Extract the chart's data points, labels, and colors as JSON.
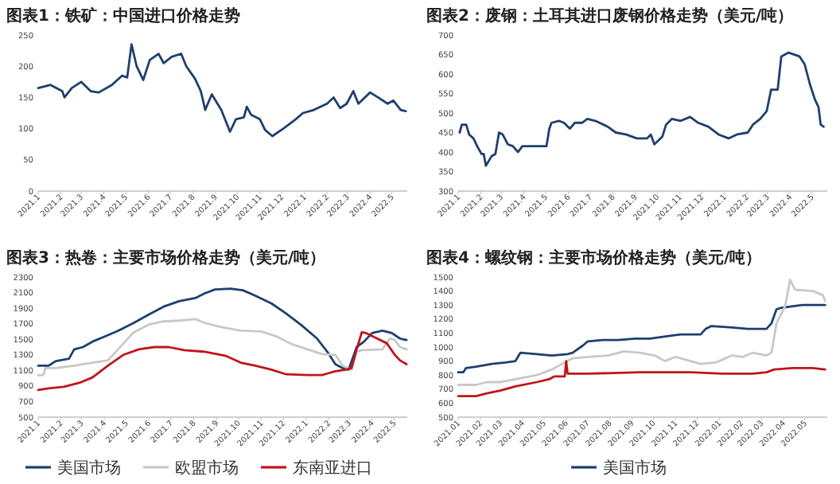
{
  "chart_data": [
    {
      "type": "line",
      "title": "图表1：铁矿：中国进口价格走势",
      "xlim": [
        "2021-01-01",
        "2022-05-22"
      ],
      "ylim": [
        0,
        250
      ],
      "yticks": [
        0,
        50,
        100,
        150,
        200,
        250
      ],
      "xticks": [
        {
          "value": "2021-01",
          "label": "2021.1"
        },
        {
          "value": "2021-02",
          "label": "2021.2"
        },
        {
          "value": "2021-03",
          "label": "2021.3"
        },
        {
          "value": "2021-04",
          "label": "2021.4"
        },
        {
          "value": "2021-05",
          "label": "2021.5"
        },
        {
          "value": "2021-06",
          "label": "2021.6"
        },
        {
          "value": "2021-07",
          "label": "2021.7"
        },
        {
          "value": "2021-08",
          "label": "2021.8"
        },
        {
          "value": "2021-09",
          "label": "2021.9"
        },
        {
          "value": "2021-10",
          "label": "2021.10"
        },
        {
          "value": "2021-11",
          "label": "2021.11"
        },
        {
          "value": "2021-12",
          "label": "2021.12"
        },
        {
          "value": "2022-01",
          "label": "2022.1"
        },
        {
          "value": "2022-02",
          "label": "2022.2"
        },
        {
          "value": "2022-03",
          "label": "2022.3"
        },
        {
          "value": "2022-04",
          "label": "2022.4"
        },
        {
          "value": "2022-05",
          "label": "2022.5"
        }
      ],
      "series": [
        {
          "color": "#1f3f6e",
          "x": [
            "2021-01-01",
            "2021-01-18",
            "2021-02-03",
            "2021-02-06",
            "2021-02-16",
            "2021-03-01",
            "2021-03-07",
            "2021-03-14",
            "2021-03-25",
            "2021-04-12",
            "2021-04-26",
            "2021-05-03",
            "2021-05-09",
            "2021-05-16",
            "2021-05-25",
            "2021-06-03",
            "2021-06-15",
            "2021-06-22",
            "2021-07-03",
            "2021-07-16",
            "2021-07-23",
            "2021-08-04",
            "2021-08-12",
            "2021-08-18",
            "2021-08-27",
            "2021-09-09",
            "2021-09-21",
            "2021-09-29",
            "2021-10-10",
            "2021-10-14",
            "2021-10-20",
            "2021-11-01",
            "2021-11-08",
            "2021-11-18",
            "2021-12-03",
            "2021-12-20",
            "2021-12-30",
            "2022-01-14",
            "2022-02-01",
            "2022-02-10",
            "2022-02-19",
            "2022-02-28",
            "2022-03-09",
            "2022-03-16",
            "2022-04-01",
            "2022-04-12",
            "2022-04-25",
            "2022-05-03",
            "2022-05-13",
            "2022-05-20"
          ],
          "values": [
            165,
            170,
            160,
            150,
            165,
            175,
            168,
            160,
            158,
            170,
            185,
            182,
            235,
            200,
            178,
            210,
            220,
            205,
            215,
            220,
            200,
            180,
            160,
            130,
            155,
            130,
            95,
            115,
            118,
            135,
            122,
            115,
            98,
            88,
            100,
            115,
            125,
            130,
            140,
            150,
            133,
            140,
            160,
            140,
            158,
            150,
            140,
            145,
            130,
            128
          ]
        }
      ]
    },
    {
      "type": "line",
      "title": "图表2：废钢：土耳其进口废钢价格走势（美元/吨）",
      "xlim": [
        "2021-01-01",
        "2022-05-22"
      ],
      "ylim": [
        300,
        700
      ],
      "yticks": [
        300,
        350,
        400,
        450,
        500,
        550,
        600,
        650,
        700
      ],
      "xticks": [
        {
          "value": "2021-01",
          "label": "2021.1"
        },
        {
          "value": "2021-02",
          "label": "2021.2"
        },
        {
          "value": "2021-03",
          "label": "2021.3"
        },
        {
          "value": "2021-04",
          "label": "2021.4"
        },
        {
          "value": "2021-05",
          "label": "2021.5"
        },
        {
          "value": "2021-06",
          "label": "2021.6"
        },
        {
          "value": "2021-07",
          "label": "2021.7"
        },
        {
          "value": "2021-08",
          "label": "2021.8"
        },
        {
          "value": "2021-09",
          "label": "2021.9"
        },
        {
          "value": "2021-10",
          "label": "2021.10"
        },
        {
          "value": "2021-11",
          "label": "2021.11"
        },
        {
          "value": "2021-12",
          "label": "2021.12"
        },
        {
          "value": "2022-01",
          "label": "2022.1"
        },
        {
          "value": "2022-02",
          "label": "2022.2"
        },
        {
          "value": "2022-03",
          "label": "2022.3"
        },
        {
          "value": "2022-04",
          "label": "2022.4"
        },
        {
          "value": "2022-05",
          "label": "2022.5"
        }
      ],
      "series": [
        {
          "color": "#1f3f6e",
          "x": [
            "2021-01-03",
            "2021-01-06",
            "2021-01-12",
            "2021-01-16",
            "2021-01-22",
            "2021-01-27",
            "2021-02-02",
            "2021-02-05",
            "2021-02-08",
            "2021-02-16",
            "2021-02-21",
            "2021-02-26",
            "2021-03-03",
            "2021-03-10",
            "2021-03-17",
            "2021-03-24",
            "2021-03-30",
            "2021-04-15",
            "2021-05-02",
            "2021-05-06",
            "2021-05-09",
            "2021-05-19",
            "2021-05-26",
            "2021-06-03",
            "2021-06-10",
            "2021-06-20",
            "2021-06-27",
            "2021-07-08",
            "2021-07-25",
            "2021-08-05",
            "2021-08-19",
            "2021-09-03",
            "2021-09-17",
            "2021-09-22",
            "2021-09-27",
            "2021-10-08",
            "2021-10-13",
            "2021-10-21",
            "2021-11-02",
            "2021-11-15",
            "2021-11-26",
            "2021-12-10",
            "2021-12-24",
            "2022-01-07",
            "2022-01-18",
            "2022-02-02",
            "2022-02-09",
            "2022-02-19",
            "2022-02-28",
            "2022-03-06",
            "2022-03-15",
            "2022-03-20",
            "2022-03-30",
            "2022-04-14",
            "2022-04-21",
            "2022-04-28",
            "2022-05-05",
            "2022-05-10",
            "2022-05-13",
            "2022-05-17"
          ],
          "values": [
            450,
            470,
            470,
            445,
            435,
            415,
            395,
            395,
            365,
            390,
            395,
            450,
            445,
            420,
            415,
            400,
            415,
            415,
            415,
            460,
            475,
            480,
            475,
            460,
            475,
            475,
            485,
            480,
            465,
            450,
            445,
            435,
            435,
            445,
            420,
            440,
            470,
            485,
            480,
            490,
            475,
            465,
            445,
            435,
            445,
            450,
            470,
            485,
            505,
            560,
            560,
            645,
            655,
            645,
            625,
            575,
            535,
            515,
            470,
            465
          ]
        }
      ]
    },
    {
      "type": "line",
      "title": "图表3：热卷：主要市场价格走势（美元/吨）",
      "xlim": [
        "2021-01-01",
        "2022-05-19"
      ],
      "ylim": [
        500,
        2300
      ],
      "yticks": [
        500,
        700,
        900,
        1100,
        1300,
        1500,
        1700,
        1900,
        2100,
        2300
      ],
      "legend": "bottom",
      "xticks": [
        {
          "value": "2021-01",
          "label": "2021.1"
        },
        {
          "value": "2021-02",
          "label": "2021.2"
        },
        {
          "value": "2021-03",
          "label": "2021.3"
        },
        {
          "value": "2021-04",
          "label": "2021.4"
        },
        {
          "value": "2021-05",
          "label": "2021.5"
        },
        {
          "value": "2021-06",
          "label": "2021.6"
        },
        {
          "value": "2021-07",
          "label": "2021.7"
        },
        {
          "value": "2021-08",
          "label": "2021.8"
        },
        {
          "value": "2021-09",
          "label": "2021.9"
        },
        {
          "value": "2021-10",
          "label": "2021.10"
        },
        {
          "value": "2021-11",
          "label": "2021.11"
        },
        {
          "value": "2021-12",
          "label": "2021.12"
        },
        {
          "value": "2022-01",
          "label": "2022.1"
        },
        {
          "value": "2022-02",
          "label": "2022.2"
        },
        {
          "value": "2022-03",
          "label": "2022.3"
        },
        {
          "value": "2022-04",
          "label": "2022.4"
        },
        {
          "value": "2022-05",
          "label": "2022.5"
        }
      ],
      "series": [
        {
          "name": "美国市场",
          "color": "#1f3f6e",
          "x": [
            "2021-01-01",
            "2021-01-15",
            "2021-01-25",
            "2021-02-12",
            "2021-02-19",
            "2021-03-03",
            "2021-03-16",
            "2021-04-03",
            "2021-04-20",
            "2021-05-11",
            "2021-06-01",
            "2021-06-21",
            "2021-07-12",
            "2021-08-03",
            "2021-08-16",
            "2021-08-30",
            "2021-09-20",
            "2021-10-07",
            "2021-10-24",
            "2021-11-15",
            "2021-12-05",
            "2021-12-26",
            "2022-01-16",
            "2022-01-30",
            "2022-02-10",
            "2022-02-20",
            "2022-02-28",
            "2022-03-11",
            "2022-03-21",
            "2022-04-01",
            "2022-04-15",
            "2022-04-28",
            "2022-05-09",
            "2022-05-18"
          ],
          "values": [
            1160,
            1160,
            1220,
            1250,
            1370,
            1400,
            1470,
            1540,
            1610,
            1710,
            1820,
            1920,
            1990,
            2030,
            2090,
            2140,
            2150,
            2130,
            2060,
            1960,
            1830,
            1680,
            1510,
            1340,
            1180,
            1130,
            1110,
            1400,
            1470,
            1580,
            1610,
            1580,
            1510,
            1490
          ]
        },
        {
          "name": "欧盟市场",
          "color": "#c8c8c8",
          "x": [
            "2021-01-01",
            "2021-01-08",
            "2021-01-11",
            "2021-01-25",
            "2021-02-19",
            "2021-03-16",
            "2021-04-06",
            "2021-04-17",
            "2021-05-11",
            "2021-06-01",
            "2021-06-21",
            "2021-07-12",
            "2021-08-03",
            "2021-08-16",
            "2021-09-06",
            "2021-10-04",
            "2021-11-01",
            "2021-11-21",
            "2021-12-12",
            "2022-01-03",
            "2022-01-23",
            "2022-02-10",
            "2022-02-20",
            "2022-03-04",
            "2022-03-11",
            "2022-03-18",
            "2022-04-15",
            "2022-04-25",
            "2022-05-02",
            "2022-05-09",
            "2022-05-18"
          ],
          "values": [
            1040,
            1040,
            1130,
            1130,
            1160,
            1200,
            1230,
            1340,
            1590,
            1690,
            1730,
            1740,
            1760,
            1710,
            1660,
            1610,
            1600,
            1540,
            1440,
            1370,
            1310,
            1300,
            1160,
            1110,
            1340,
            1360,
            1370,
            1510,
            1490,
            1400,
            1370
          ]
        },
        {
          "name": "东南亚进口",
          "color": "#c0141c",
          "x": [
            "2021-01-01",
            "2021-01-15",
            "2021-02-05",
            "2021-02-26",
            "2021-03-16",
            "2021-04-06",
            "2021-04-27",
            "2021-05-18",
            "2021-06-08",
            "2021-06-28",
            "2021-07-19",
            "2021-08-16",
            "2021-09-13",
            "2021-10-04",
            "2021-10-24",
            "2021-11-15",
            "2021-12-05",
            "2022-01-03",
            "2022-01-23",
            "2022-01-30",
            "2022-02-10",
            "2022-02-24",
            "2022-03-04",
            "2022-03-11",
            "2022-03-18",
            "2022-03-24",
            "2022-04-08",
            "2022-04-21",
            "2022-05-02",
            "2022-05-09",
            "2022-05-18"
          ],
          "values": [
            850,
            870,
            890,
            940,
            1010,
            1160,
            1300,
            1370,
            1400,
            1400,
            1360,
            1340,
            1290,
            1200,
            1160,
            1110,
            1050,
            1040,
            1040,
            1060,
            1090,
            1110,
            1130,
            1370,
            1590,
            1580,
            1510,
            1450,
            1300,
            1230,
            1180
          ]
        }
      ]
    },
    {
      "type": "line",
      "title": "图表4：螺纹钢：主要市场价格走势（美元/吨）",
      "xlim": [
        "2021-01-01",
        "2022-06-01"
      ],
      "ylim": [
        500,
        1500
      ],
      "yticks": [
        500,
        600,
        700,
        800,
        900,
        1000,
        1100,
        1200,
        1300,
        1400,
        1500
      ],
      "legend": "bottom",
      "xticks": [
        {
          "value": "2021-01",
          "label": "2021.01"
        },
        {
          "value": "2021-02",
          "label": "2021.02"
        },
        {
          "value": "2021-03",
          "label": "2021.03"
        },
        {
          "value": "2021-04",
          "label": "2021.04"
        },
        {
          "value": "2021-05",
          "label": "2021.05"
        },
        {
          "value": "2021-06",
          "label": "2021.06"
        },
        {
          "value": "2021-07",
          "label": "2021.07"
        },
        {
          "value": "2021-08",
          "label": "2021.08"
        },
        {
          "value": "2021-09",
          "label": "2021.09"
        },
        {
          "value": "2021-10",
          "label": "2021.10"
        },
        {
          "value": "2021-11",
          "label": "2021.11"
        },
        {
          "value": "2021-12",
          "label": "2021.12"
        },
        {
          "value": "2022-01",
          "label": "2022.01"
        },
        {
          "value": "2022-02",
          "label": "2022.02"
        },
        {
          "value": "2022-03",
          "label": "2022.03"
        },
        {
          "value": "2022-04",
          "label": "2022.04"
        },
        {
          "value": "2022-05",
          "label": "2022.05"
        }
      ],
      "series": [
        {
          "name": "美国市场",
          "color": "#1f3f6e",
          "x": [
            "2021-01-01",
            "2021-01-08",
            "2021-01-12",
            "2021-01-26",
            "2021-02-17",
            "2021-03-08",
            "2021-03-22",
            "2021-03-29",
            "2021-04-21",
            "2021-05-12",
            "2021-06-03",
            "2021-06-10",
            "2021-06-24",
            "2021-07-01",
            "2021-07-22",
            "2021-08-13",
            "2021-09-05",
            "2021-09-26",
            "2021-10-24",
            "2021-11-08",
            "2021-12-06",
            "2021-12-13",
            "2021-12-21",
            "2022-01-19",
            "2022-02-10",
            "2022-03-08",
            "2022-03-15",
            "2022-03-22",
            "2022-03-29",
            "2022-04-27",
            "2022-05-29"
          ],
          "values": [
            820,
            820,
            850,
            860,
            880,
            890,
            900,
            960,
            950,
            940,
            950,
            960,
            1010,
            1040,
            1050,
            1050,
            1060,
            1060,
            1080,
            1090,
            1090,
            1130,
            1150,
            1140,
            1130,
            1130,
            1170,
            1270,
            1280,
            1300,
            1300
          ]
        },
        {
          "color": "#c8c8c8",
          "x": [
            "2021-01-01",
            "2021-01-26",
            "2021-02-10",
            "2021-03-01",
            "2021-03-22",
            "2021-04-21",
            "2021-05-12",
            "2021-05-26",
            "2021-06-10",
            "2021-07-01",
            "2021-07-29",
            "2021-08-21",
            "2021-09-12",
            "2021-10-03",
            "2021-10-17",
            "2021-11-01",
            "2021-11-22",
            "2021-12-06",
            "2021-12-27",
            "2022-01-19",
            "2022-02-03",
            "2022-02-17",
            "2022-03-08",
            "2022-03-15",
            "2022-03-22",
            "2022-04-03",
            "2022-04-10",
            "2022-04-17",
            "2022-05-12",
            "2022-05-26",
            "2022-05-29"
          ],
          "values": [
            730,
            730,
            750,
            750,
            770,
            800,
            840,
            880,
            920,
            930,
            940,
            970,
            960,
            940,
            900,
            930,
            900,
            880,
            890,
            940,
            930,
            960,
            940,
            960,
            1170,
            1290,
            1480,
            1410,
            1400,
            1370,
            1330
          ]
        },
        {
          "color": "#c0141c",
          "x": [
            "2021-01-01",
            "2021-01-26",
            "2021-02-10",
            "2021-03-01",
            "2021-03-22",
            "2021-04-21",
            "2021-05-08",
            "2021-05-15",
            "2021-05-30",
            "2021-06-01",
            "2021-06-03",
            "2021-07-01",
            "2021-09-12",
            "2021-11-22",
            "2022-01-05",
            "2022-02-17",
            "2022-03-08",
            "2022-03-19",
            "2022-04-13",
            "2022-05-12",
            "2022-05-29"
          ],
          "values": [
            650,
            650,
            670,
            690,
            720,
            750,
            770,
            790,
            790,
            900,
            810,
            810,
            820,
            820,
            810,
            810,
            820,
            840,
            850,
            850,
            840
          ]
        }
      ]
    }
  ]
}
